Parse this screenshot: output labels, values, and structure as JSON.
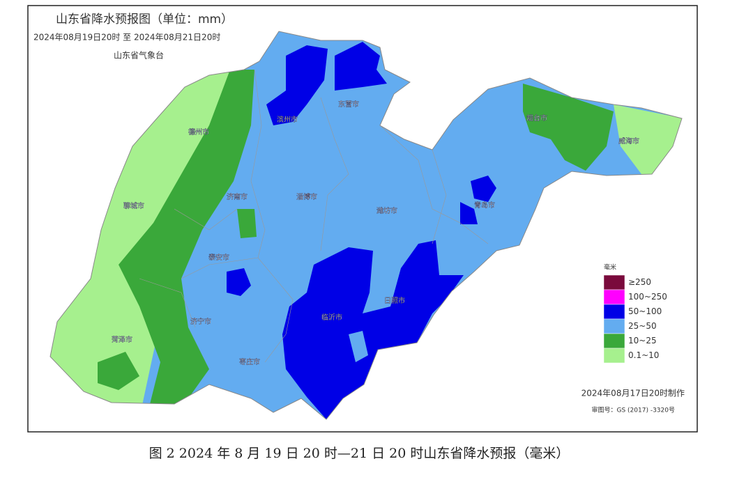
{
  "header": {
    "title": "山东省降水预报图（单位：mm）",
    "period": "2024年08月19日20时 至 2024年08月21日20时",
    "agency": "山东省气象台"
  },
  "cities": [
    "滨州市",
    "东营市",
    "烟台市",
    "威海市",
    "德州市",
    "聊城市",
    "济南市",
    "淄博市",
    "潍坊市",
    "青岛市",
    "泰安市",
    "济宁市",
    "菏泽市",
    "枣庄市",
    "临沂市",
    "日照市"
  ],
  "legend": {
    "title": "毫米",
    "items": [
      {
        "label": "≥250",
        "color": "#7a0a3c"
      },
      {
        "label": "100~250",
        "color": "#ff00ff"
      },
      {
        "label": "50~100",
        "color": "#0000e6"
      },
      {
        "label": "25~50",
        "color": "#63acf0"
      },
      {
        "label": "10~25",
        "color": "#3aa83a"
      },
      {
        "label": "0.1~10",
        "color": "#a6f08e"
      }
    ]
  },
  "footer": {
    "made": "2024年08月17日20时制作",
    "approval": "审图号：GS (2017) -3320号"
  },
  "caption": "图 2 2024 年 8 月 19 日 20 时—21 日 20 时山东省降水预报（毫米）"
}
